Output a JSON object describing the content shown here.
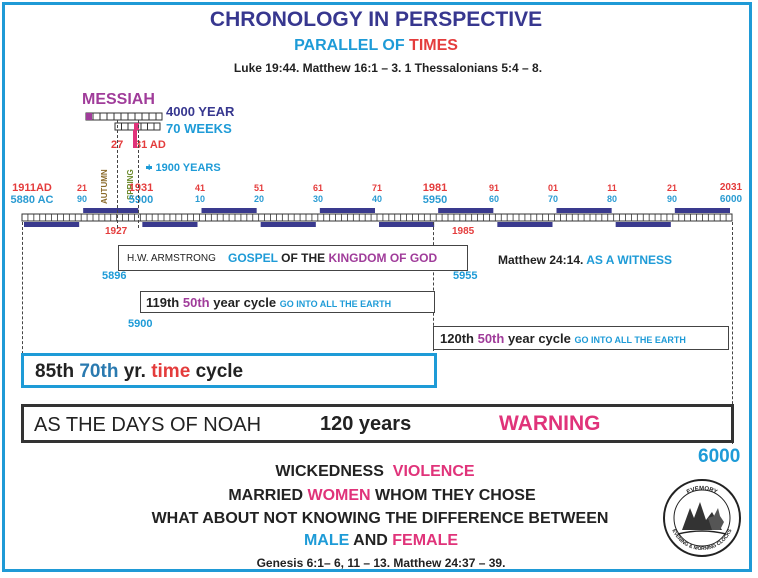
{
  "header": {
    "title": "CHRONOLOGY IN PERSPECTIVE",
    "subtitle_prefix": "PARALLEL OF ",
    "subtitle_emph": "TIMES",
    "scriptures": "Luke 19:44. Matthew 16:1 – 3. 1 Thessalonians 5:4 – 8."
  },
  "messiah": {
    "label": "MESSIAH",
    "year_label": "4000 YEAR",
    "weeks_label": "70 WEEKS",
    "year_27": "27",
    "year_31": "31 AD",
    "autumn": "AUTUMN",
    "spring": "SPRING",
    "plus_1900": "+ 1900 YEARS"
  },
  "timeline": {
    "start_top": "1911AD",
    "start_bottom": "5880 AC",
    "major_1931_top": "1931",
    "major_1931_bottom": "5900",
    "major_1981_top": "1981",
    "major_1981_bottom": "5950",
    "end_top": "2031",
    "end_bottom": "6000",
    "ticks": [
      {
        "top": "21",
        "bottom": "90"
      },
      {
        "top": "41",
        "bottom": "10"
      },
      {
        "top": "51",
        "bottom": "20"
      },
      {
        "top": "61",
        "bottom": "30"
      },
      {
        "top": "71",
        "bottom": "40"
      },
      {
        "top": "91",
        "bottom": "60"
      },
      {
        "top": "01",
        "bottom": "70"
      },
      {
        "top": "11",
        "bottom": "80"
      },
      {
        "top": "21",
        "bottom": "90"
      }
    ],
    "below_1927": "1927",
    "below_1985": "1985"
  },
  "gospel": {
    "name": "H.W. ARMSTRONG",
    "gospel": "GOSPEL",
    "of_the": "OF THE",
    "kingdom": "KINGDOM OF GOD",
    "start": "5896",
    "end": "5955",
    "witness_prefix": "Matthew 24:14. ",
    "witness_emph": "AS A WITNESS"
  },
  "cycle119": {
    "ordinal": "119th",
    "fiftieth": "50th",
    "rest": "year cycle",
    "note": "GO INTO ALL THE EARTH",
    "start": "5900"
  },
  "cycle120": {
    "ordinal": "120th",
    "fiftieth": "50th",
    "rest": "year cycle",
    "note": "GO INTO ALL THE EARTH"
  },
  "cycle85": {
    "ordinal": "85th",
    "seventieth": "70th",
    "yr": "yr.",
    "time": "time",
    "cycle": "cycle"
  },
  "noah": {
    "label": "AS THE DAYS OF NOAH",
    "years": "120 years",
    "warning": "WARNING",
    "end": "6000"
  },
  "footer": {
    "line1_a": "WICKEDNESS",
    "line1_b": "VIOLENCE",
    "line2_a": "MARRIED",
    "line2_b": "WOMEN",
    "line2_c": "WHOM THEY CHOSE",
    "line3": "WHAT ABOUT NOT KNOWING THE DIFFERENCE BETWEEN",
    "line4_a": "MALE",
    "line4_b": "AND",
    "line4_c": "FEMALE",
    "scriptures": "Genesis 6:1– 6, 11 – 13.  Matthew 24:37 – 39."
  },
  "seal": {
    "top_text": "EVEMORY",
    "bottom_text": "EVENING & MORNING CLOCKS"
  },
  "colors": {
    "navy": "#37378f",
    "blue": "#1e9bd7",
    "red": "#e43c3c",
    "pink": "#e0337a",
    "purple": "#a03c9a"
  }
}
